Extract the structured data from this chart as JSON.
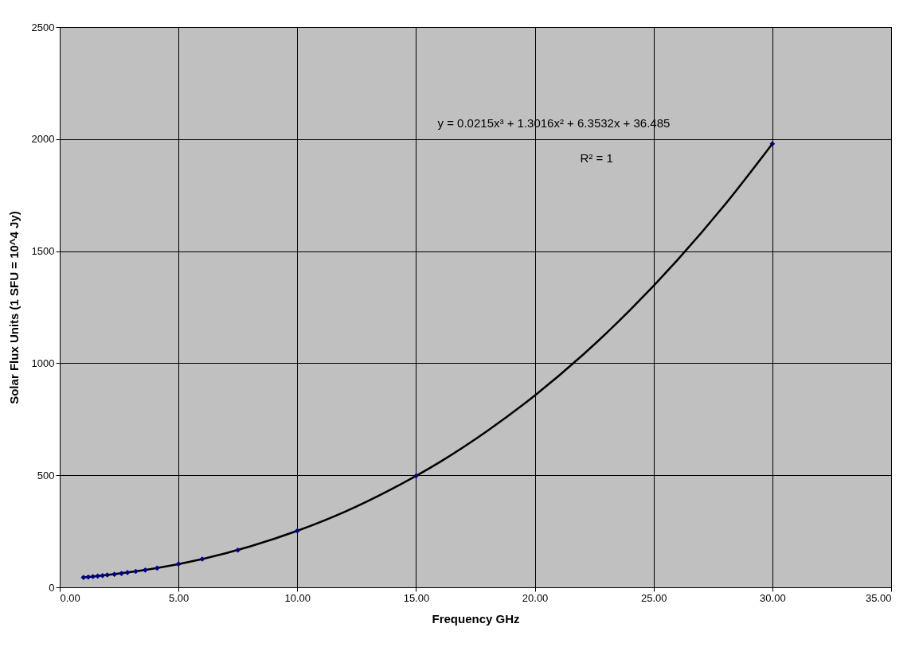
{
  "chart_data": {
    "type": "scatter",
    "xlabel": "Frequency GHz",
    "ylabel": "Solar Flux Units (1 SFU = 10^4 Jy)",
    "annotations": [
      "y = 0.0215x³ + 1.3016x² + 6.3532x + 36.485",
      "R² = 1"
    ],
    "series": [
      {
        "type": "line",
        "color": "#000000",
        "x": [
          1,
          2,
          4,
          6,
          8,
          10,
          12,
          14,
          16,
          18,
          20,
          22,
          24,
          26,
          28,
          30
        ],
        "values": [
          44,
          55,
          84,
          126,
          182,
          252,
          337,
          440,
          559,
          698,
          856,
          1035,
          1236,
          1460,
          1707,
          1979
        ]
      },
      {
        "type": "scatter",
        "color": "#000080",
        "marker": "diamond",
        "x": [
          1,
          1.2,
          1.4,
          1.6,
          1.8,
          2,
          2.3,
          2.6,
          2.85,
          3.2,
          3.6,
          4.1,
          5,
          6,
          7.5,
          10,
          15,
          30
        ],
        "values": [
          44,
          46,
          48,
          50,
          52,
          55,
          58,
          62,
          66,
          71,
          77,
          86,
          104,
          126,
          166,
          252,
          497,
          1979
        ]
      }
    ],
    "xlim": [
      0,
      35
    ],
    "xticks": [
      {
        "value": 0,
        "label": "0.00"
      },
      {
        "value": 5,
        "label": "5.00"
      },
      {
        "value": 10,
        "label": "10.00"
      },
      {
        "value": 15,
        "label": "15.00"
      },
      {
        "value": 20,
        "label": "20.00"
      },
      {
        "value": 25,
        "label": "25.00"
      },
      {
        "value": 30,
        "label": "30.00"
      },
      {
        "value": 35,
        "label": "35.00"
      }
    ],
    "ylim": [
      0,
      2500
    ],
    "yticks": [
      0,
      500,
      1000,
      1500,
      2000,
      2500
    ],
    "grid": true,
    "legend": false
  }
}
